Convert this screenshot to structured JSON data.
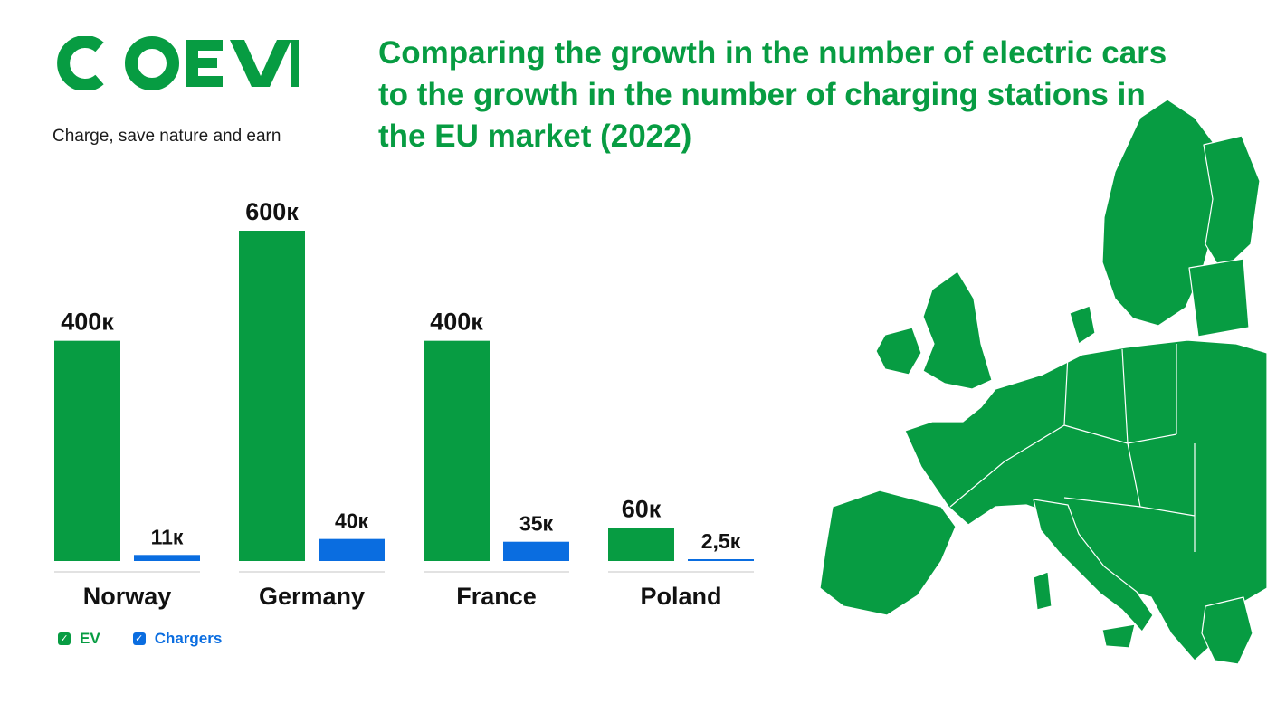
{
  "brand": {
    "logo_text": "COEV",
    "tagline": "Charge, save nature and earn",
    "color": "#079c42"
  },
  "title": "Comparing the growth in the number of electric cars to the growth in the number of charging stations in the EU market (2022)",
  "legend": {
    "ev": "EV",
    "chargers": "Chargers",
    "check_icon": "checkbox-checked-icon"
  },
  "colors": {
    "ev": "#079c42",
    "chargers": "#0a6de0",
    "text": "#111111"
  },
  "map": {
    "icon": "europe-map-icon",
    "color": "#079c42"
  },
  "chart_data": {
    "type": "bar",
    "categories": [
      "Norway",
      "Germany",
      "France",
      "Poland"
    ],
    "series": [
      {
        "name": "EV",
        "values": [
          400000,
          600000,
          400000,
          60000
        ],
        "labels": [
          "400к",
          "600к",
          "400к",
          "60к"
        ]
      },
      {
        "name": "Chargers",
        "values": [
          11000,
          40000,
          35000,
          2500
        ],
        "labels": [
          "11к",
          "40к",
          "35к",
          "2,5к"
        ]
      }
    ],
    "title": "Comparing the growth in the number of electric cars to the growth in the number of charging stations in the EU market (2022)",
    "ylim": [
      0,
      600000
    ],
    "grid": false,
    "legend_position": "bottom-left"
  }
}
